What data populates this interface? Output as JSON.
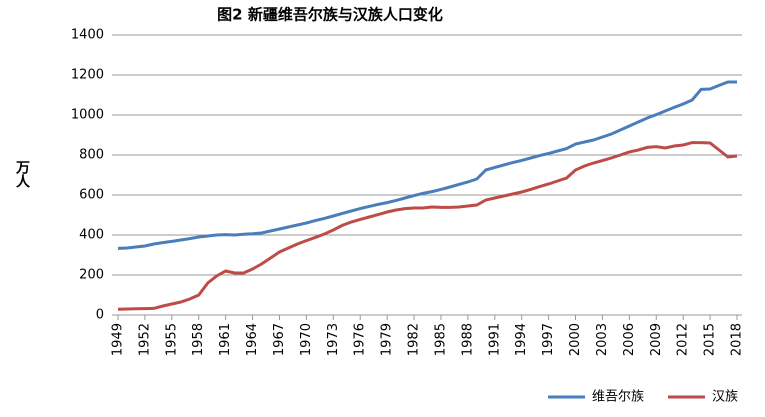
{
  "chart_data": {
    "type": "line",
    "title": "图2   新疆维吾尔族与汉族人口变化",
    "y_label": "万人",
    "x": [
      1949,
      1950,
      1951,
      1952,
      1953,
      1954,
      1955,
      1956,
      1957,
      1958,
      1959,
      1960,
      1961,
      1962,
      1963,
      1964,
      1965,
      1966,
      1967,
      1968,
      1969,
      1970,
      1971,
      1972,
      1973,
      1974,
      1975,
      1976,
      1977,
      1978,
      1979,
      1980,
      1981,
      1982,
      1983,
      1984,
      1985,
      1986,
      1987,
      1988,
      1989,
      1990,
      1991,
      1992,
      1993,
      1994,
      1995,
      1996,
      1997,
      1998,
      1999,
      2000,
      2001,
      2002,
      2003,
      2004,
      2005,
      2006,
      2007,
      2008,
      2009,
      2010,
      2011,
      2012,
      2013,
      2014,
      2015,
      2016,
      2017,
      2018
    ],
    "series": [
      {
        "name": "维吾尔族",
        "color": "#4a7ebb",
        "values": [
          333,
          335,
          340,
          345,
          355,
          362,
          368,
          375,
          382,
          390,
          395,
          400,
          402,
          400,
          404,
          406,
          410,
          420,
          430,
          440,
          450,
          460,
          472,
          483,
          495,
          508,
          520,
          532,
          543,
          553,
          562,
          573,
          585,
          597,
          608,
          617,
          628,
          640,
          653,
          665,
          680,
          725,
          738,
          750,
          762,
          773,
          785,
          797,
          808,
          820,
          832,
          855,
          865,
          875,
          890,
          905,
          925,
          945,
          965,
          985,
          1002,
          1020,
          1038,
          1055,
          1075,
          1128,
          1130,
          1148,
          1165,
          1165
        ]
      },
      {
        "name": "汉族",
        "color": "#be4b48",
        "values": [
          29,
          30,
          31,
          32,
          33,
          45,
          55,
          65,
          80,
          100,
          160,
          195,
          220,
          210,
          210,
          230,
          255,
          285,
          315,
          335,
          355,
          372,
          388,
          405,
          425,
          448,
          465,
          478,
          490,
          502,
          515,
          525,
          532,
          535,
          535,
          540,
          538,
          538,
          540,
          545,
          550,
          575,
          585,
          595,
          605,
          615,
          628,
          642,
          655,
          670,
          685,
          725,
          745,
          760,
          772,
          785,
          800,
          815,
          825,
          838,
          842,
          835,
          845,
          850,
          862,
          862,
          860,
          825,
          790,
          795
        ]
      }
    ],
    "xlim": [
      1949,
      2018
    ],
    "xticks": [
      1949,
      1952,
      1955,
      1958,
      1961,
      1964,
      1967,
      1970,
      1973,
      1976,
      1979,
      1982,
      1985,
      1988,
      1991,
      1994,
      1997,
      2000,
      2003,
      2006,
      2009,
      2012,
      2015,
      2018
    ],
    "ylim": [
      0,
      1400
    ],
    "yticks": [
      0,
      200,
      400,
      600,
      800,
      1000,
      1200,
      1400
    ],
    "grid": true,
    "legend": "bottom-right"
  }
}
